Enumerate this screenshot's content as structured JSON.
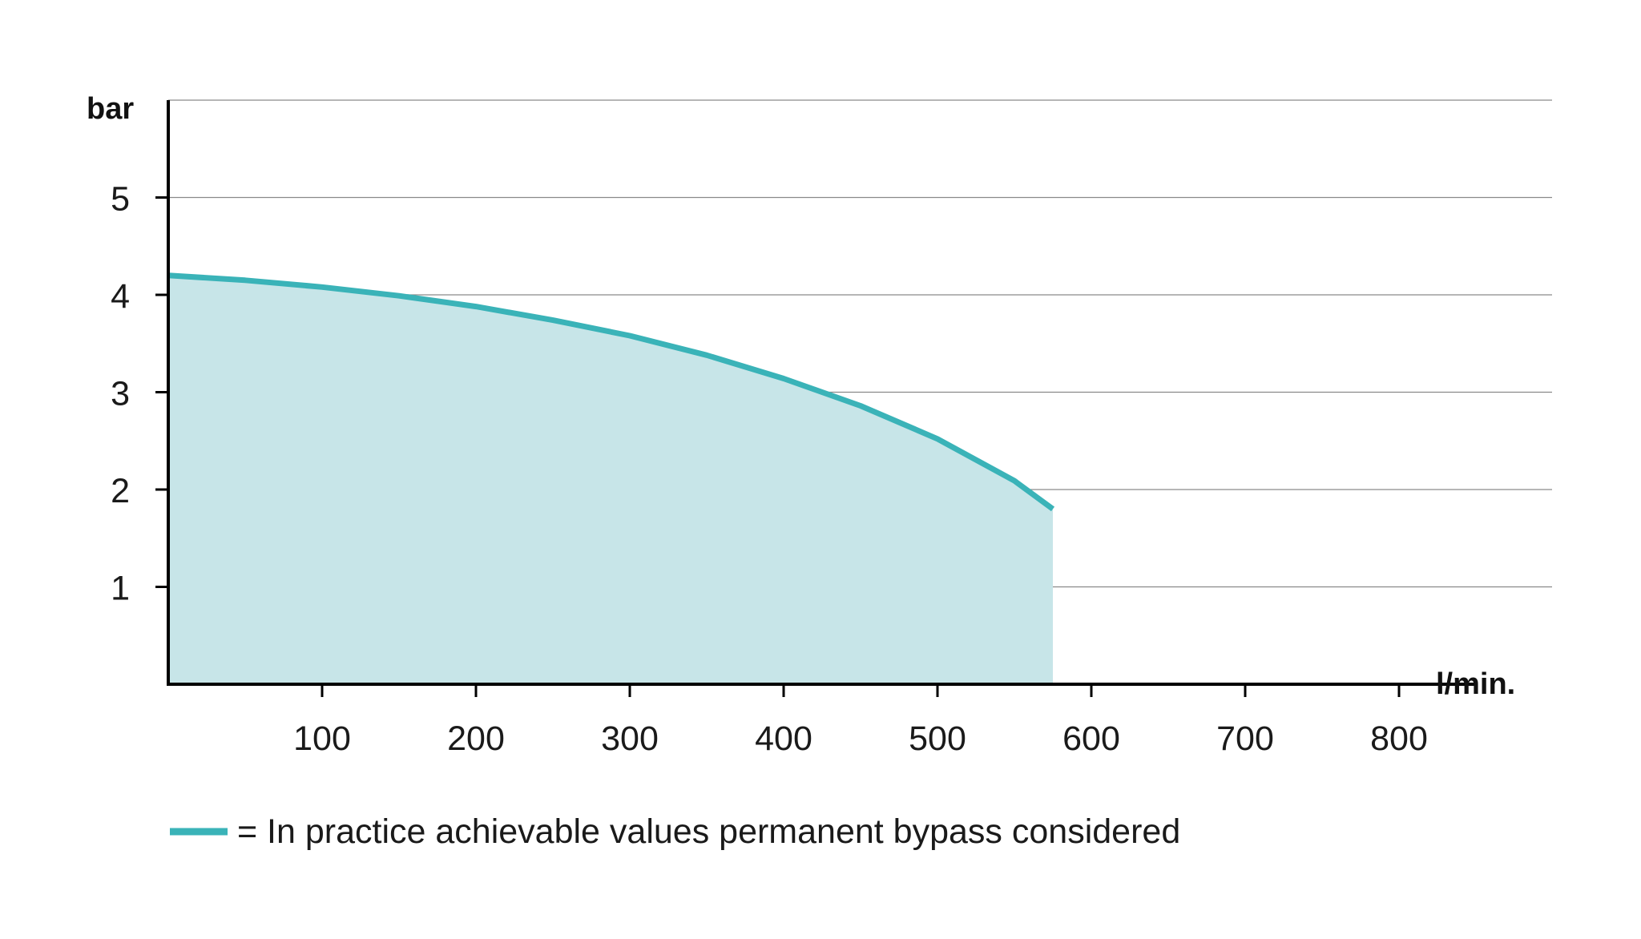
{
  "chart_data": {
    "type": "area",
    "xlabel": "l/min.",
    "ylabel": "bar",
    "xlim": [
      0,
      850
    ],
    "ylim": [
      0,
      6
    ],
    "x_ticks": [
      100,
      200,
      300,
      400,
      500,
      600,
      700,
      800
    ],
    "y_ticks": [
      1,
      2,
      3,
      4,
      5
    ],
    "grid": "horizontal",
    "series": [
      {
        "x": [
          0,
          50,
          100,
          150,
          200,
          250,
          300,
          350,
          400,
          450,
          500,
          550,
          575
        ],
        "y": [
          4.2,
          4.15,
          4.08,
          3.99,
          3.88,
          3.74,
          3.58,
          3.38,
          3.14,
          2.86,
          2.52,
          2.09,
          1.8
        ],
        "color": "#3ab3b8",
        "fill_color": "#c7e5e8"
      }
    ],
    "legend": {
      "placement": "bottom-left",
      "text": "= In practice achievable values permanent bypass considered"
    }
  }
}
